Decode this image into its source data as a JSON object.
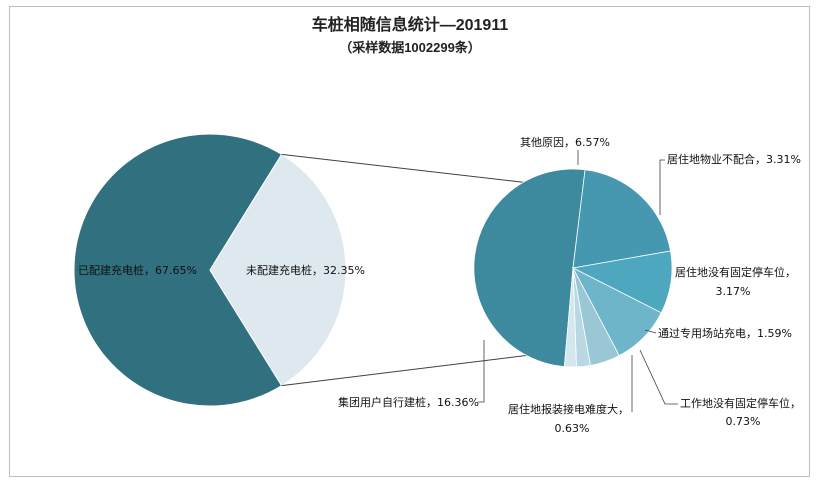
{
  "chart_data": {
    "type": "pie",
    "title": "车桩相随信息统计—201911",
    "subtitle": "（采样数据1002299条）",
    "main_pie": {
      "slices": [
        {
          "label": "已配建充电桩，67.65%",
          "value": 67.65,
          "color": "#31707F"
        },
        {
          "label": "未配建充电桩，32.35%",
          "value": 32.35,
          "color": "#DDE9EF"
        }
      ]
    },
    "detail_pie": {
      "total": 32.35,
      "slices": [
        {
          "label": "集团用户自行建桩，16.36%",
          "value": 16.36,
          "color": "#3D8A9F"
        },
        {
          "label": "其他原因，6.57%",
          "value": 6.57,
          "color": "#4598AF"
        },
        {
          "label": "居住地物业不配合，3.31%",
          "value": 3.31,
          "color": "#4DA7BF"
        },
        {
          "label": "居住地没有固定停车位，3.17%",
          "value": 3.17,
          "color": "#6EB5C9"
        },
        {
          "label": "通过专用场站充电，1.59%",
          "value": 1.59,
          "color": "#9AC7D6"
        },
        {
          "label": "工作地没有固定停车位，0.73%",
          "value": 0.73,
          "color": "#B9D8E3"
        },
        {
          "label": "居住地报装接电难度大，0.63%",
          "value": 0.63,
          "color": "#D4E6EE"
        }
      ]
    }
  }
}
